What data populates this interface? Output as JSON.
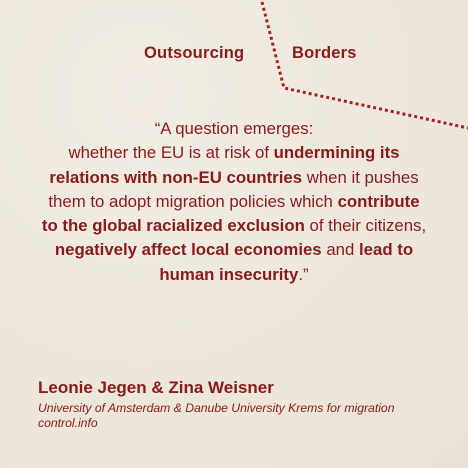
{
  "header": {
    "left_label": "Outsourcing",
    "right_label": "Borders"
  },
  "quote": {
    "segments": [
      {
        "text": "“A question emerges:",
        "bold": false
      },
      {
        "text": " whether the EU is at risk of ",
        "bold": false
      },
      {
        "text": "undermining its relations with non-EU countries",
        "bold": true
      },
      {
        "text": " when it pushes them to adopt migration policies which ",
        "bold": false
      },
      {
        "text": "contribute to the global racialized exclusion",
        "bold": true
      },
      {
        "text": " of their citizens, ",
        "bold": false
      },
      {
        "text": "negatively affect local economies",
        "bold": true
      },
      {
        "text": " and ",
        "bold": false
      },
      {
        "text": "lead to human insecurity",
        "bold": true
      },
      {
        "text": ".”",
        "bold": false
      }
    ]
  },
  "author": {
    "name": "Leonie Jegen & Zina Weisner",
    "affiliation": "University of Amsterdam & Danube University Krems for migration control.info"
  },
  "colors": {
    "accent": "#8b1a1a",
    "background": "#efeae0"
  }
}
